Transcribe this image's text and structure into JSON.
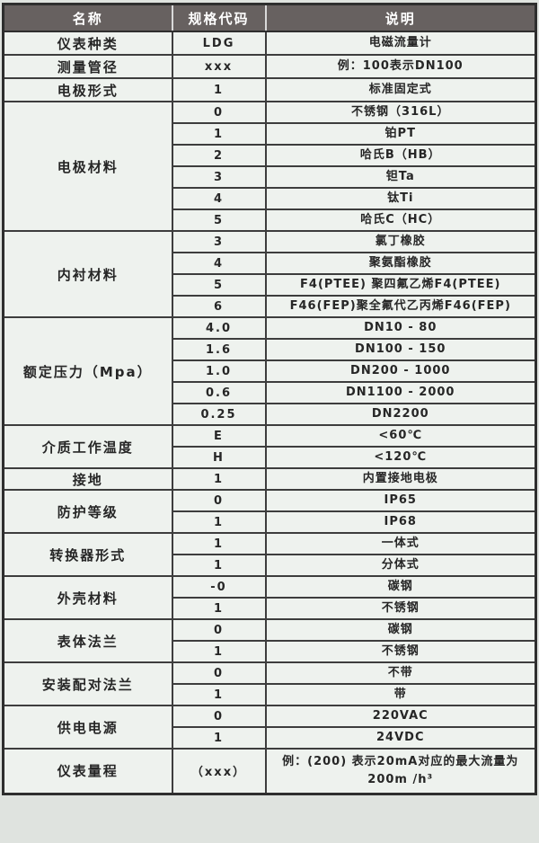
{
  "colors": {
    "page_background": "#dfe3df",
    "header_background": "#676160",
    "header_text": "#ffffff",
    "cell_background": "#eef2ee",
    "grid_line": "#3d3d3d",
    "body_text": "#262626"
  },
  "table": {
    "columns": [
      "名称",
      "规格代码",
      "说明"
    ],
    "sections": [
      {
        "name": "仪表种类",
        "rows": [
          {
            "code": "LDG",
            "desc": "电磁流量计"
          }
        ]
      },
      {
        "name": "测量管径",
        "rows": [
          {
            "code": "xxx",
            "desc": "例：100表示DN100"
          }
        ]
      },
      {
        "name": "电极形式",
        "rows": [
          {
            "code": "1",
            "desc": "标准固定式"
          }
        ]
      },
      {
        "name": "电极材料",
        "rows": [
          {
            "code": "0",
            "desc": "不锈钢（316L）"
          },
          {
            "code": "1",
            "desc": "铂PT"
          },
          {
            "code": "2",
            "desc": "哈氏B（HB）"
          },
          {
            "code": "3",
            "desc": "钽Ta"
          },
          {
            "code": "4",
            "desc": "钛Ti"
          },
          {
            "code": "5",
            "desc": "哈氏C（HC）"
          }
        ]
      },
      {
        "name": "内衬材料",
        "rows": [
          {
            "code": "3",
            "desc": "氯丁橡胶"
          },
          {
            "code": "4",
            "desc": "聚氨酯橡胶"
          },
          {
            "code": "5",
            "desc": "F4(PTEE) 聚四氟乙烯F4(PTEE)"
          },
          {
            "code": "6",
            "desc": "F46(FEP)聚全氟代乙丙烯F46(FEP)"
          }
        ]
      },
      {
        "name": "额定压力（Mpa）",
        "rows": [
          {
            "code": "4.0",
            "desc": "DN10 - 80"
          },
          {
            "code": "1.6",
            "desc": "DN100 - 150"
          },
          {
            "code": "1.0",
            "desc": "DN200 - 1000"
          },
          {
            "code": "0.6",
            "desc": "DN1100 - 2000"
          },
          {
            "code": "0.25",
            "desc": "DN2200"
          }
        ]
      },
      {
        "name": "介质工作温度",
        "rows": [
          {
            "code": "E",
            "desc": "<60℃"
          },
          {
            "code": "H",
            "desc": "<120℃"
          }
        ]
      },
      {
        "name": "接地",
        "rows": [
          {
            "code": "1",
            "desc": "内置接地电极"
          }
        ]
      },
      {
        "name": "防护等级",
        "rows": [
          {
            "code": "0",
            "desc": "IP65"
          },
          {
            "code": "1",
            "desc": "IP68"
          }
        ]
      },
      {
        "name": "转换器形式",
        "rows": [
          {
            "code": "1",
            "desc": "一体式"
          },
          {
            "code": "1",
            "desc": "分体式"
          }
        ]
      },
      {
        "name": "外壳材料",
        "rows": [
          {
            "code": "-0",
            "desc": "碳钢"
          },
          {
            "code": "1",
            "desc": "不锈钢"
          }
        ]
      },
      {
        "name": "表体法兰",
        "rows": [
          {
            "code": "0",
            "desc": "碳钢"
          },
          {
            "code": "1",
            "desc": "不锈钢"
          }
        ]
      },
      {
        "name": "安装配对法兰",
        "rows": [
          {
            "code": "0",
            "desc": "不带"
          },
          {
            "code": "1",
            "desc": "带"
          }
        ]
      },
      {
        "name": "供电电源",
        "rows": [
          {
            "code": "0",
            "desc": "220VAC"
          },
          {
            "code": "1",
            "desc": "24VDC"
          }
        ]
      },
      {
        "name": "仪表量程",
        "rows": [
          {
            "code": "（xxx）",
            "desc": "例：(200) 表示20mA对应的最大流量为200m /h³"
          }
        ]
      }
    ]
  }
}
